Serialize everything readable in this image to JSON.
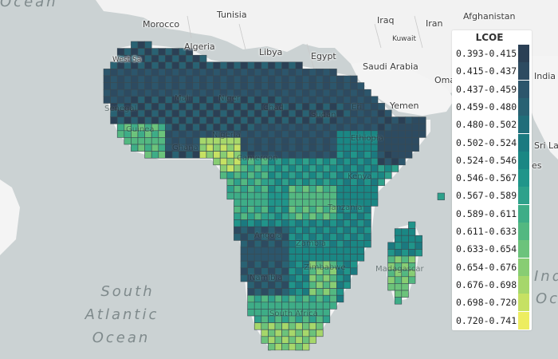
{
  "map": {
    "legend_title": "LCOE",
    "legend": [
      {
        "range": "0.393-0.415",
        "color": "#2b4055"
      },
      {
        "range": "0.415-0.437",
        "color": "#2d4b61"
      },
      {
        "range": "0.437-0.459",
        "color": "#2c566c"
      },
      {
        "range": "0.459-0.480",
        "color": "#296273"
      },
      {
        "range": "0.480-0.502",
        "color": "#216e7a"
      },
      {
        "range": "0.502-0.524",
        "color": "#1b7a80"
      },
      {
        "range": "0.524-0.546",
        "color": "#1a8784"
      },
      {
        "range": "0.546-0.567",
        "color": "#20958a"
      },
      {
        "range": "0.567-0.589",
        "color": "#2ea18b"
      },
      {
        "range": "0.589-0.611",
        "color": "#3ead87"
      },
      {
        "range": "0.611-0.633",
        "color": "#53b881"
      },
      {
        "range": "0.633-0.654",
        "color": "#6cc37b"
      },
      {
        "range": "0.654-0.676",
        "color": "#88cd73"
      },
      {
        "range": "0.676-0.698",
        "color": "#a6d76b"
      },
      {
        "range": "0.698-0.720",
        "color": "#c6e163"
      },
      {
        "range": "0.720-0.741",
        "color": "#eded60"
      }
    ],
    "countries": [
      "Tunisia",
      "Morocco",
      "Algeria",
      "Libya",
      "Egypt",
      "Iraq",
      "Iran",
      "Afghanistan",
      "Kuwait",
      "Saudi Arabia",
      "Oma",
      "India",
      "Yemen",
      "Sri La",
      "West Sa",
      "Mali",
      "Niger",
      "Chad",
      "Sudan",
      "Eri",
      "Ethiopia",
      "Senegal",
      "Guinea",
      "Ghana",
      "Nigeria",
      "Cameroon",
      "Kenya",
      "Tanzania",
      "Angola",
      "Zambia",
      "Zimbabwe",
      "Namibia",
      "Madagascar",
      "South Africa",
      "es",
      "Indi",
      "Oce"
    ],
    "ocean": [
      "South",
      "Atlantic",
      "Ocean"
    ],
    "ocean_top": "Ocean"
  }
}
